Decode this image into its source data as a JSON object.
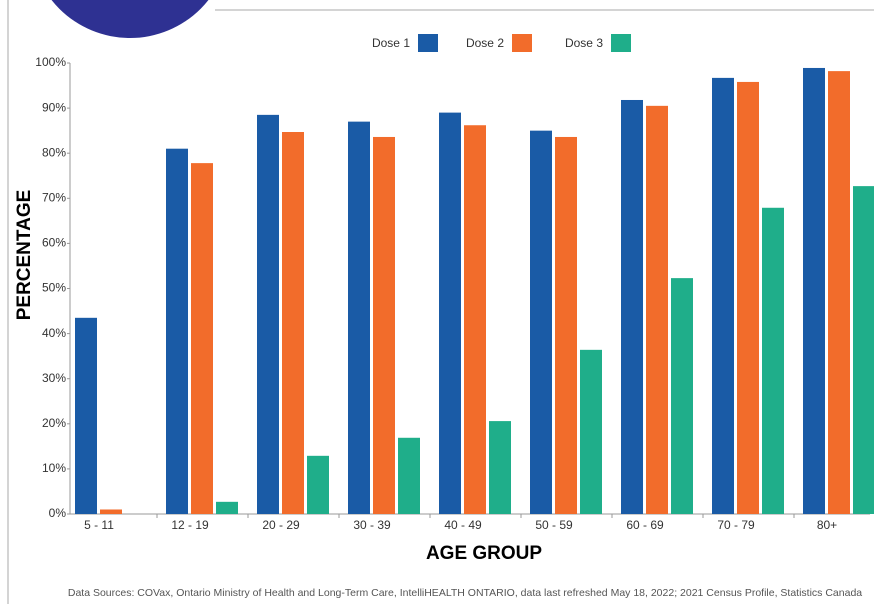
{
  "chart_data": {
    "type": "bar",
    "categories": [
      "5 - 11",
      "12 - 19",
      "20 - 29",
      "30 - 39",
      "40 - 49",
      "50 - 59",
      "60 - 69",
      "70 - 79",
      "80+"
    ],
    "series": [
      {
        "name": "Dose 1",
        "color": "#1a5ba6",
        "values": [
          43.5,
          81,
          88.5,
          87,
          89,
          85,
          91.8,
          96.7,
          98.9
        ]
      },
      {
        "name": "Dose 2",
        "color": "#f26c2b",
        "values": [
          1,
          77.8,
          84.7,
          83.6,
          86.2,
          83.6,
          90.5,
          95.8,
          98.2
        ]
      },
      {
        "name": "Dose 3",
        "color": "#1fae8a",
        "values": [
          null,
          2.7,
          12.9,
          16.9,
          20.6,
          36.4,
          52.3,
          67.9,
          72.7
        ]
      }
    ],
    "ylim": [
      0,
      100
    ],
    "yticks": [
      {
        "value": 0,
        "label": "0%"
      },
      {
        "value": 10,
        "label": "10%"
      },
      {
        "value": 20,
        "label": "20%"
      },
      {
        "value": 30,
        "label": "30%"
      },
      {
        "value": 40,
        "label": "40%"
      },
      {
        "value": 50,
        "label": "50%"
      },
      {
        "value": 60,
        "label": "60%"
      },
      {
        "value": 70,
        "label": "70%"
      },
      {
        "value": 80,
        "label": "80%"
      },
      {
        "value": 90,
        "label": "90%"
      },
      {
        "value": 100,
        "label": "100%"
      }
    ],
    "ylabel": "PERCENTAGE",
    "xlabel": "AGE GROUP",
    "source": "Data Sources:  COVax, Ontario Ministry of Health and Long-Term Care, IntelliHEALTH ONTARIO, data last refreshed May 18, 2022; 2021 Census Profile, Statistics Canada",
    "grid": false
  }
}
